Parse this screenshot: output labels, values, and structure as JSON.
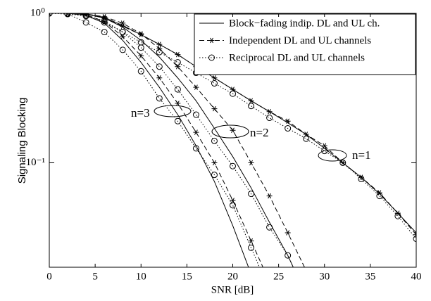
{
  "chart_data": {
    "type": "line",
    "xlabel": "SNR [dB]",
    "ylabel": "Signaling Blocking",
    "log_y": true,
    "grid": false,
    "legend": "upper right",
    "x": [
      0,
      2,
      4,
      6,
      8,
      10,
      12,
      14,
      16,
      18,
      20,
      22,
      24,
      26,
      28,
      30,
      32,
      34,
      36,
      38,
      40
    ],
    "xlim": [
      0,
      40
    ],
    "xticks": [
      0,
      5,
      10,
      15,
      20,
      25,
      30,
      35,
      40
    ],
    "ylim": [
      0.02,
      1
    ],
    "yticks": [
      {
        "value": 1,
        "label": "10⁰"
      },
      {
        "value": 0.1,
        "label": "10⁻¹"
      }
    ],
    "annotations": [
      "n=1",
      "n=2",
      "n=3"
    ],
    "series": [
      {
        "name": "Block−fading indip. DL and UL ch.",
        "color": "#000000",
        "dash": "solid",
        "marker": "none",
        "values": [
          [
            1,
            1,
            0.99,
            0.94,
            0.83,
            0.72,
            0.62,
            0.53,
            0.44,
            0.37,
            0.31,
            0.26,
            0.22,
            0.185,
            0.155,
            0.125,
            0.1,
            0.08,
            0.062,
            0.046,
            0.034
          ],
          [
            1,
            1,
            0.99,
            0.93,
            0.81,
            0.66,
            0.51,
            0.37,
            0.26,
            0.17,
            0.11,
            0.068,
            0.04,
            0.024,
            0.013,
            null,
            null,
            null,
            null,
            null,
            null
          ],
          [
            1,
            1,
            0.97,
            0.86,
            0.66,
            0.47,
            0.32,
            0.21,
            0.13,
            0.075,
            0.038,
            0.018,
            null,
            null,
            null,
            null,
            null,
            null,
            null,
            null,
            null
          ]
        ]
      },
      {
        "name": "Independent DL and UL channels",
        "color": "#000000",
        "dash": "dashed",
        "marker": "star",
        "values": [
          [
            1,
            1,
            0.99,
            0.93,
            0.82,
            0.72,
            0.62,
            0.53,
            0.44,
            0.37,
            0.31,
            0.26,
            0.22,
            0.19,
            0.155,
            0.13,
            0.1,
            0.08,
            0.063,
            0.046,
            0.033
          ],
          [
            1,
            1,
            0.99,
            0.95,
            0.86,
            0.73,
            0.58,
            0.44,
            0.32,
            0.23,
            0.165,
            0.1,
            0.06,
            0.034,
            0.019,
            null,
            null,
            null,
            null,
            null,
            null
          ],
          [
            1,
            1,
            0.98,
            0.88,
            0.7,
            0.52,
            0.37,
            0.25,
            0.16,
            0.1,
            0.056,
            0.03,
            0.016,
            null,
            null,
            null,
            null,
            null,
            null,
            null,
            null
          ]
        ]
      },
      {
        "name": "Reciprocal DL and UL channels",
        "color": "#000000",
        "dash": "dotted",
        "marker": "circle",
        "values": [
          [
            1,
            0.99,
            0.96,
            0.87,
            0.75,
            0.64,
            0.55,
            0.47,
            0.4,
            0.34,
            0.29,
            0.24,
            0.2,
            0.17,
            0.145,
            0.12,
            0.1,
            0.078,
            0.06,
            0.044,
            0.031
          ],
          [
            1,
            1,
            0.97,
            0.89,
            0.75,
            0.59,
            0.44,
            0.31,
            0.21,
            0.14,
            0.095,
            0.062,
            0.037,
            0.024,
            0.013,
            null,
            null,
            null,
            null,
            null,
            null
          ],
          [
            1,
            0.99,
            0.87,
            0.75,
            0.57,
            0.41,
            0.27,
            0.19,
            0.125,
            0.083,
            0.052,
            0.027,
            0.014,
            null,
            null,
            null,
            null,
            null,
            null,
            null,
            null
          ]
        ]
      }
    ]
  }
}
